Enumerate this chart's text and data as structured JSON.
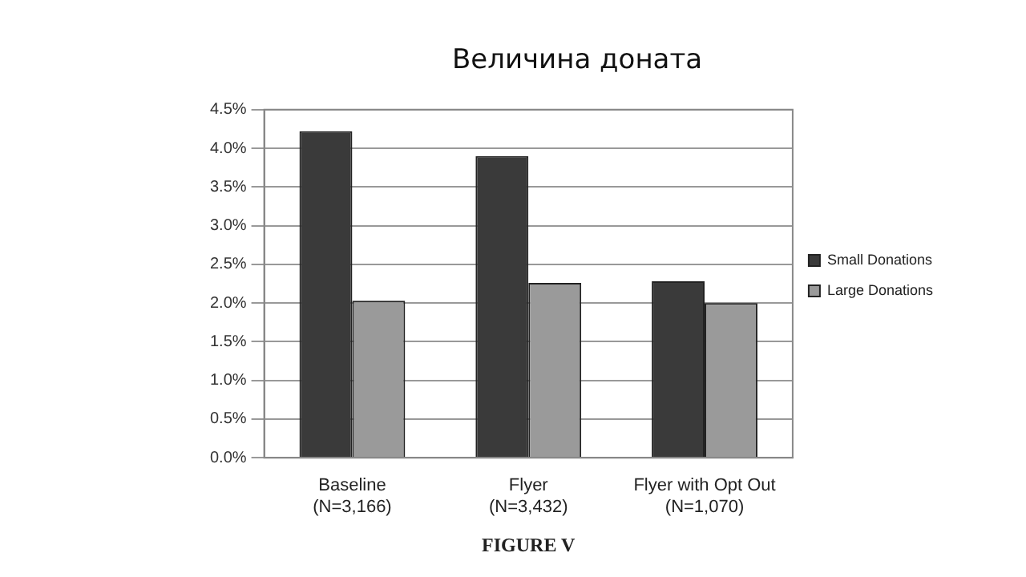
{
  "chart_data": {
    "type": "bar",
    "title": "Величина доната",
    "categories": [
      "Baseline\n(N=3,166)",
      "Flyer\n(N=3,432)",
      "Flyer with Opt Out\n(N=1,070)"
    ],
    "series": [
      {
        "name": "Small Donations",
        "color": "#3a3a3a",
        "values": [
          4.22,
          3.9,
          2.28
        ]
      },
      {
        "name": "Large Donations",
        "color": "#9a9a9a",
        "values": [
          2.03,
          2.26,
          2.0
        ]
      }
    ],
    "ylim": [
      0,
      4.5
    ],
    "yticks": [
      {
        "value": 0,
        "label": "0.0%"
      },
      {
        "value": 0.5,
        "label": "0.5%"
      },
      {
        "value": 1,
        "label": "1.0%"
      },
      {
        "value": 1.5,
        "label": "1.5%"
      },
      {
        "value": 2,
        "label": "2.0%"
      },
      {
        "value": 2.5,
        "label": "2.5%"
      },
      {
        "value": 3,
        "label": "3.0%"
      },
      {
        "value": 3.5,
        "label": "3.5%"
      },
      {
        "value": 4,
        "label": "4.0%"
      },
      {
        "value": 4.5,
        "label": "4.5%"
      }
    ],
    "grid": "y",
    "legend": "right",
    "annotations": [
      "FIGURE V"
    ]
  }
}
